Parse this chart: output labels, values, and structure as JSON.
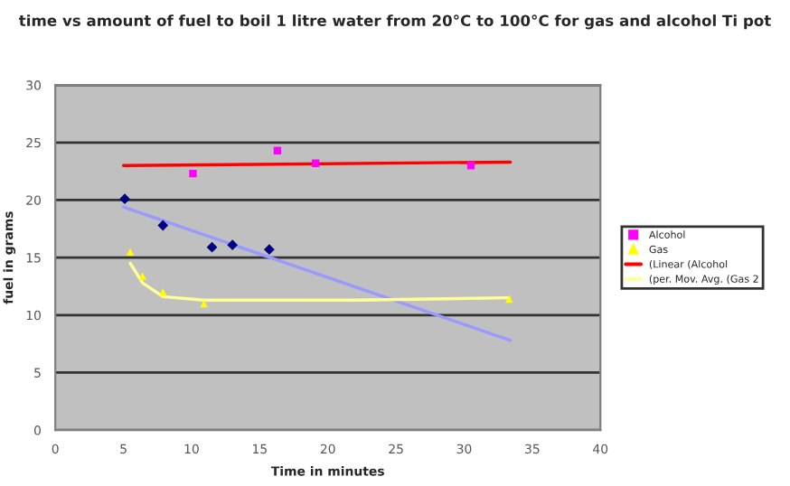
{
  "chart_data": {
    "type": "scatter",
    "title": "time vs amount of fuel to boil 1 litre water from 20°C to 100°C for gas and alcohol Ti pot",
    "xlabel": "Time in minutes",
    "ylabel": "fuel in grams",
    "xlim": [
      0,
      40
    ],
    "xticks": [
      0,
      5,
      10,
      15,
      20,
      25,
      30,
      35,
      40
    ],
    "ylim": [
      0,
      30
    ],
    "yticks": [
      0,
      5,
      10,
      15,
      20,
      25,
      30
    ],
    "grid": "y",
    "legend": "right",
    "series": [
      {
        "marker": "diamond",
        "color": "#000080",
        "x": [
          5.1,
          7.9,
          11.5,
          13.0,
          15.7
        ],
        "values": [
          20.1,
          17.8,
          15.9,
          16.1,
          15.7
        ]
      },
      {
        "marker": "square",
        "name": "Alcohol",
        "color": "#ff00ff",
        "x": [
          10.1,
          16.3,
          19.1,
          30.5
        ],
        "values": [
          22.3,
          24.3,
          23.2,
          23.0
        ]
      },
      {
        "marker": "triangle",
        "name": "Gas",
        "color": "#ffff00",
        "x": [
          5.5,
          6.4,
          7.9,
          10.9,
          33.3
        ],
        "values": [
          15.5,
          13.4,
          12.0,
          11.0,
          11.4
        ]
      },
      {
        "type": "line",
        "marker": "none",
        "name": "(Linear (Alcohol",
        "color": "#ff0000",
        "x": [
          5.0,
          33.4
        ],
        "values": [
          23.0,
          23.3
        ]
      },
      {
        "type": "line",
        "marker": "none",
        "color": "#9999ff",
        "x": [
          5.0,
          33.4
        ],
        "values": [
          19.4,
          7.8
        ]
      },
      {
        "type": "line",
        "marker": "none",
        "name": "(per. Mov. Avg. (Gas 2",
        "color": "#ffff99",
        "x": [
          5.5,
          6.4,
          7.9,
          10.9,
          22.0,
          33.3
        ],
        "values": [
          14.5,
          12.8,
          11.6,
          11.3,
          11.3,
          11.5
        ]
      }
    ]
  }
}
